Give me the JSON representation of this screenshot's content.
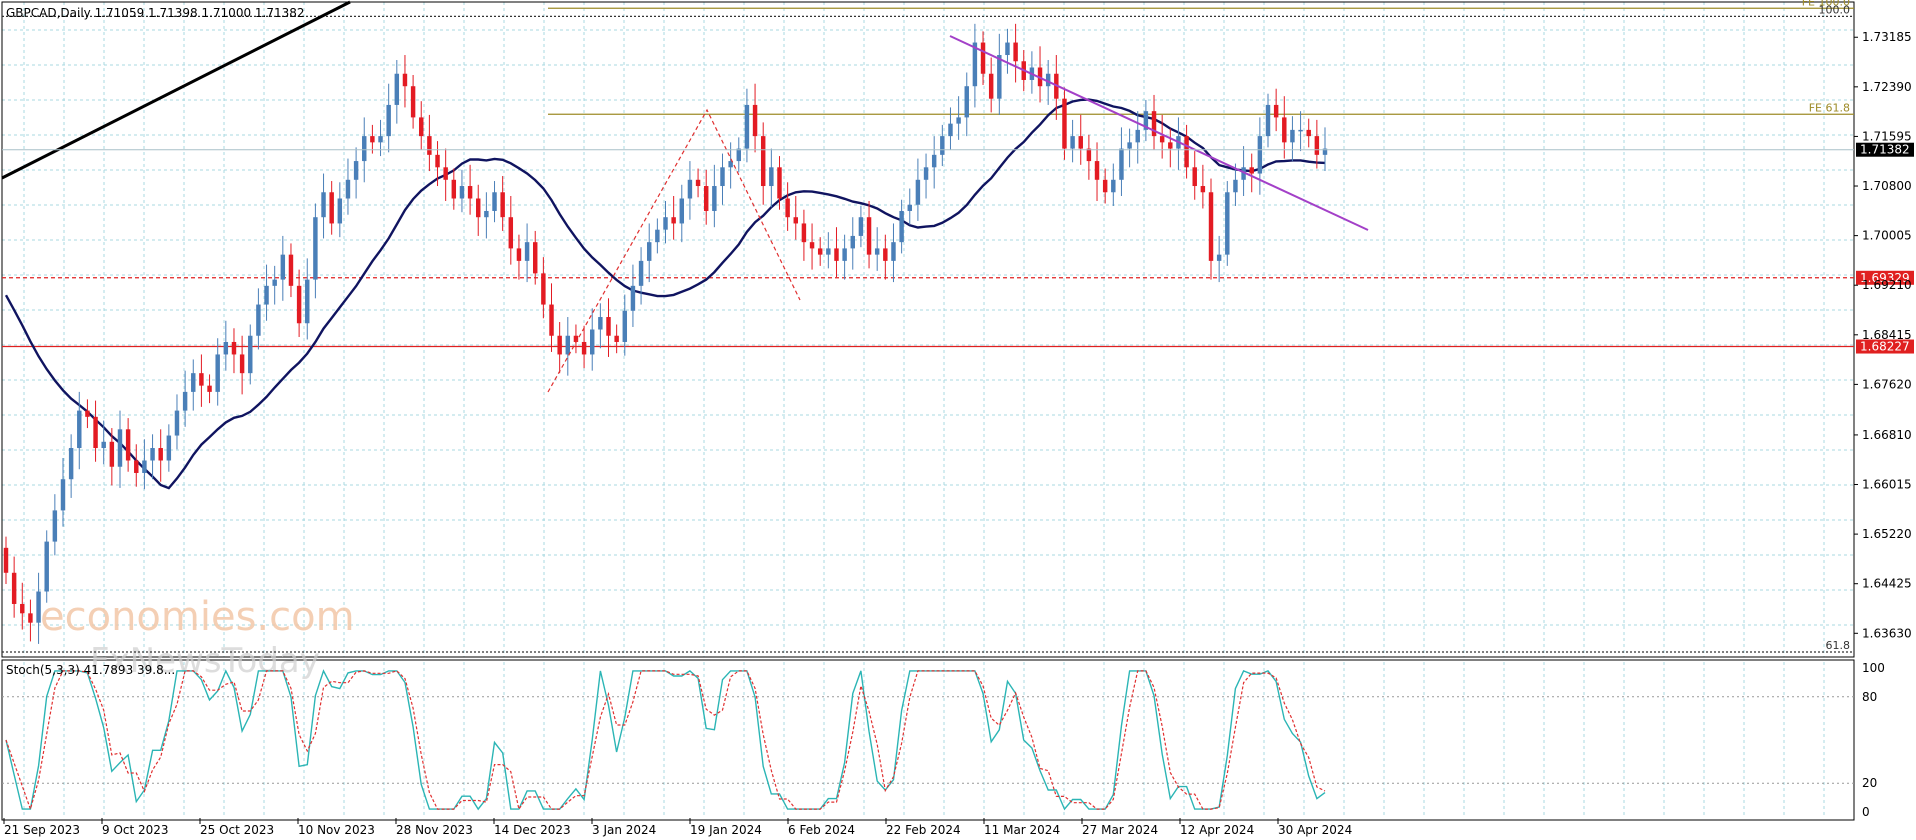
{
  "chart_data": {
    "type": "candlestick",
    "symbol_header": "GBPCAD,Daily  1.71059 1.71398 1.71000 1.71382",
    "current_price": {
      "value": 1.71382,
      "label": "1.71382"
    },
    "y_axis": {
      "min": 1.6325,
      "max": 1.7375,
      "ticks": [
        "1.73185",
        "1.72390",
        "1.71595",
        "1.70800",
        "1.70005",
        "1.69210",
        "1.68415",
        "1.67620",
        "1.66810",
        "1.66015",
        "1.65220",
        "1.64425",
        "1.63630"
      ]
    },
    "x_axis": {
      "ticks": [
        "21 Sep 2023",
        "9 Oct 2023",
        "25 Oct 2023",
        "10 Nov 2023",
        "28 Nov 2023",
        "14 Dec 2023",
        "3 Jan 2024",
        "19 Jan 2024",
        "6 Feb 2024",
        "22 Feb 2024",
        "11 Mar 2024",
        "27 Mar 2024",
        "12 Apr 2024",
        "30 Apr 2024"
      ]
    },
    "series": [
      {
        "name": "GBPCAD",
        "kind": "ohlc",
        "closes": [
          1.646,
          1.641,
          1.6395,
          1.638,
          1.643,
          1.651,
          1.656,
          1.661,
          1.666,
          1.672,
          1.671,
          1.666,
          1.667,
          1.663,
          1.669,
          1.664,
          1.662,
          1.664,
          1.666,
          1.664,
          1.668,
          1.672,
          1.675,
          1.678,
          1.676,
          1.675,
          1.681,
          1.683,
          1.681,
          1.678,
          1.684,
          1.689,
          1.692,
          1.693,
          1.697,
          1.692,
          1.686,
          1.693,
          1.703,
          1.707,
          1.702,
          1.706,
          1.709,
          1.712,
          1.716,
          1.715,
          1.716,
          1.721,
          1.726,
          1.724,
          1.719,
          1.716,
          1.713,
          1.711,
          1.709,
          1.706,
          1.708,
          1.706,
          1.703,
          1.704,
          1.707,
          1.703,
          1.698,
          1.696,
          1.699,
          1.694,
          1.689,
          1.684,
          1.681,
          1.684,
          1.683,
          1.681,
          1.685,
          1.687,
          1.684,
          1.683,
          1.688,
          1.692,
          1.696,
          1.699,
          1.701,
          1.703,
          1.702,
          1.706,
          1.709,
          1.708,
          1.704,
          1.708,
          1.711,
          1.712,
          1.714,
          1.721,
          1.716,
          1.708,
          1.711,
          1.706,
          1.703,
          1.702,
          1.699,
          1.698,
          1.697,
          1.698,
          1.696,
          1.698,
          1.7,
          1.703,
          1.697,
          1.698,
          1.696,
          1.699,
          1.704,
          1.705,
          1.709,
          1.711,
          1.713,
          1.716,
          1.718,
          1.719,
          1.724,
          1.731,
          1.726,
          1.722,
          1.729,
          1.731,
          1.728,
          1.725,
          1.727,
          1.724,
          1.726,
          1.722,
          1.714,
          1.716,
          1.714,
          1.712,
          1.709,
          1.707,
          1.709,
          1.714,
          1.715,
          1.717,
          1.72,
          1.716,
          1.715,
          1.714,
          1.716,
          1.711,
          1.708,
          1.707,
          1.696,
          1.697,
          1.707,
          1.709,
          1.711,
          1.71,
          1.716,
          1.721,
          1.719,
          1.715,
          1.717,
          1.717,
          1.716,
          1.713,
          1.714
        ]
      }
    ],
    "indicators": [
      {
        "name": "Moving average",
        "color": "#101460"
      },
      {
        "name": "Stoch(5,3,3)",
        "label": "Stoch(5,3,3) 41.7893 39.8..."
      }
    ],
    "levels": [
      {
        "label": "FE 100.0",
        "value": 1.7365,
        "color": "#9e8b28",
        "style": "solid"
      },
      {
        "label": "100.0",
        "value": 1.7352,
        "color": "#333333",
        "style": "dotted"
      },
      {
        "label": "FE 61.8",
        "value": 1.7195,
        "color": "#9e8b28",
        "style": "solid"
      },
      {
        "label": "1.69329",
        "value": 1.69329,
        "color": "#e02020",
        "style": "dashed"
      },
      {
        "label": "1.68227",
        "value": 1.68227,
        "color": "#e02020",
        "style": "solid"
      },
      {
        "label": "61.8",
        "value": 1.6333,
        "color": "#333333",
        "style": "dotted"
      }
    ],
    "trendlines": [
      {
        "name": "black uptrend",
        "color": "#000000"
      },
      {
        "name": "purple downtrend",
        "color": "#a340c8"
      },
      {
        "name": "red dashed zigzag",
        "color": "#e03030"
      }
    ],
    "stoch_axis": {
      "ticks": [
        "100",
        "80",
        "20",
        "0"
      ]
    },
    "colors": {
      "bull": "#4a7fb8",
      "bear": "#e31b23",
      "grid": "#a8d8e0"
    },
    "watermark": {
      "line1": "economies.com",
      "line2": "FxNewsToday"
    }
  }
}
